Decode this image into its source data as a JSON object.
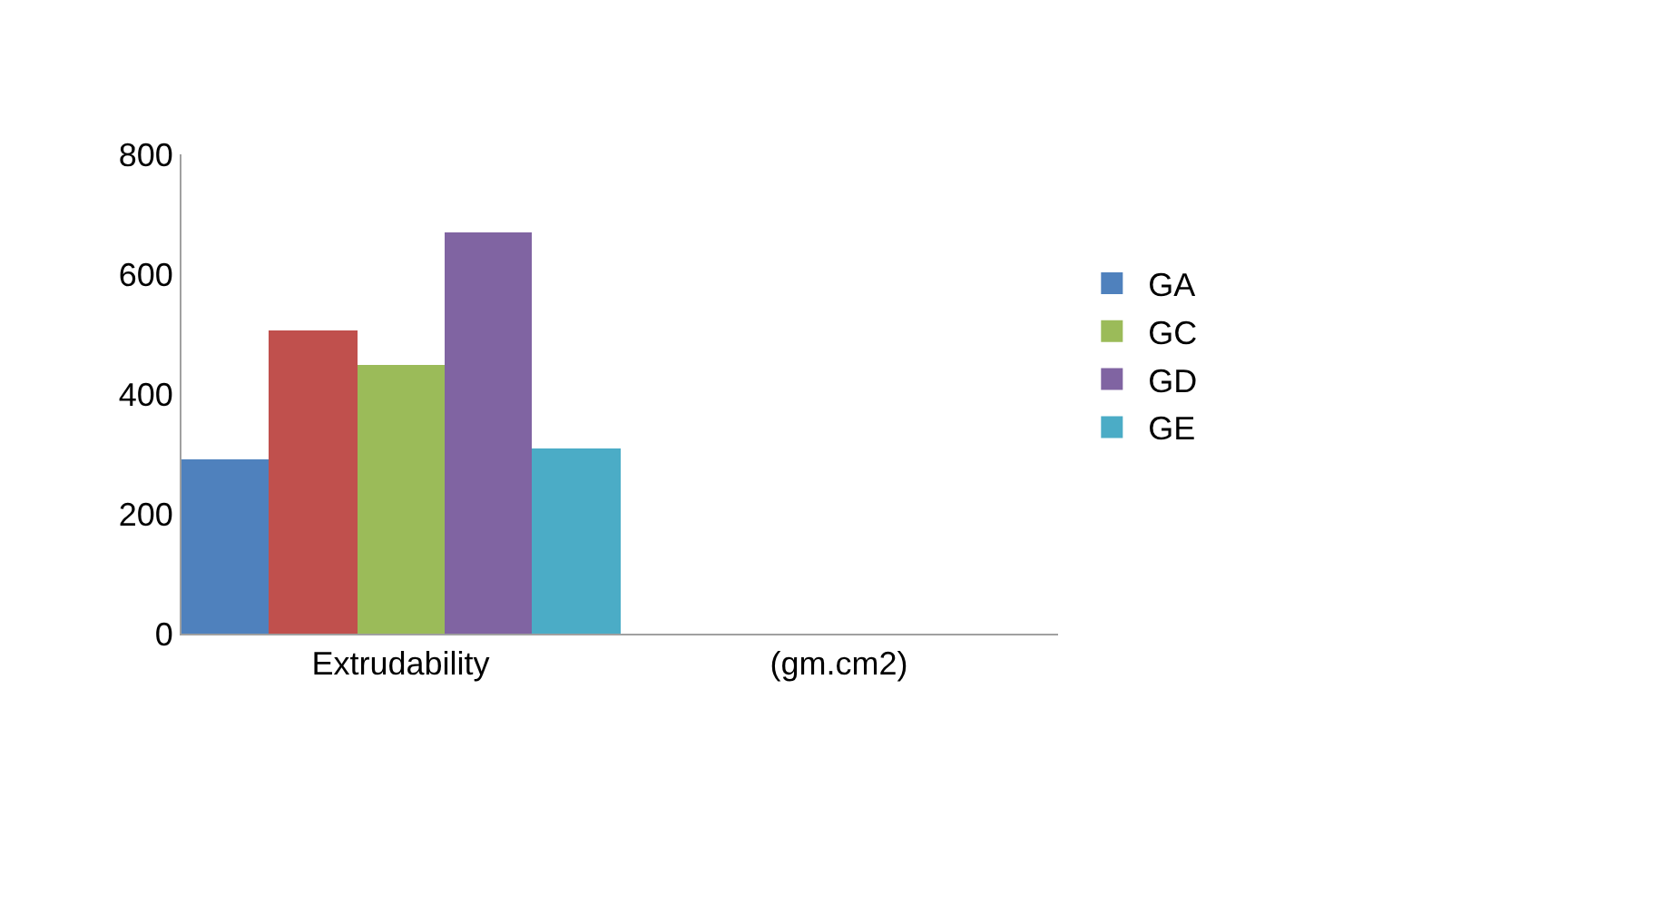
{
  "chart_data": {
    "type": "bar",
    "categories": [
      "Extrudability",
      "(gm.cm2)"
    ],
    "series": [
      {
        "name": "GA",
        "color": "#4f81bd",
        "values": [
          290,
          null
        ]
      },
      {
        "color": "#c0504d",
        "values": [
          505,
          null
        ]
      },
      {
        "name": "GC",
        "color": "#9bbb59",
        "values": [
          450,
          null
        ]
      },
      {
        "name": "GD",
        "color": "#8064a2",
        "values": [
          670,
          null
        ]
      },
      {
        "name": "GE",
        "color": "#4bacc6",
        "values": [
          310,
          null
        ]
      }
    ],
    "ylim": [
      0,
      800
    ],
    "yticks": [
      0,
      200,
      400,
      600,
      800
    ],
    "legend": "right"
  }
}
